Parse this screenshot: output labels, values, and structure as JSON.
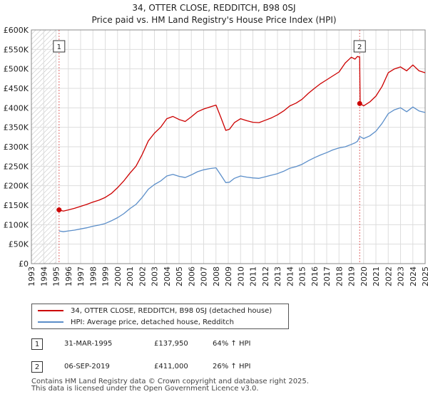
{
  "colors": {
    "property": "#cc0000",
    "hpi": "#5b8ec9",
    "marker": "#cc0000",
    "vline": "#cc0000"
  },
  "chart_data": {
    "type": "line",
    "title": "34, OTTER CLOSE, REDDITCH, B98 0SJ",
    "subtitle": "Price paid vs. HM Land Registry's House Price Index (HPI)",
    "xlim": [
      1993,
      2025
    ],
    "ylim": [
      0,
      600000
    ],
    "x_ticks": [
      1993,
      1994,
      1995,
      1996,
      1997,
      1998,
      1999,
      2000,
      2001,
      2002,
      2003,
      2004,
      2005,
      2006,
      2007,
      2008,
      2009,
      2010,
      2011,
      2012,
      2013,
      2014,
      2015,
      2016,
      2017,
      2018,
      2019,
      2020,
      2021,
      2022,
      2023,
      2024,
      2025
    ],
    "y_ticks": [
      0,
      50000,
      100000,
      150000,
      200000,
      250000,
      300000,
      350000,
      400000,
      450000,
      500000,
      550000,
      600000
    ],
    "y_tick_labels": [
      "£0",
      "£50K",
      "£100K",
      "£150K",
      "£200K",
      "£250K",
      "£300K",
      "£350K",
      "£400K",
      "£450K",
      "£500K",
      "£550K",
      "£600K"
    ],
    "grid": true,
    "hatched_region_before": 1995.0,
    "series": [
      {
        "name": "34, OTTER CLOSE, REDDITCH, B98 0SJ (detached house)",
        "x": [
          1995.25,
          1995.6,
          1996.0,
          1996.5,
          1997.0,
          1997.5,
          1998.0,
          1998.5,
          1999.0,
          1999.5,
          2000.0,
          2000.5,
          2001.0,
          2001.5,
          2002.0,
          2002.5,
          2003.0,
          2003.5,
          2004.0,
          2004.5,
          2005.0,
          2005.5,
          2006.0,
          2006.5,
          2007.0,
          2007.5,
          2008.0,
          2008.4,
          2008.8,
          2009.1,
          2009.5,
          2010.0,
          2010.5,
          2011.0,
          2011.5,
          2012.0,
          2012.5,
          2013.0,
          2013.5,
          2014.0,
          2014.5,
          2015.0,
          2015.5,
          2016.0,
          2016.5,
          2017.0,
          2017.5,
          2018.0,
          2018.5,
          2019.0,
          2019.3,
          2019.5,
          2019.68,
          2019.72,
          2020.0,
          2020.5,
          2021.0,
          2021.5,
          2022.0,
          2022.5,
          2023.0,
          2023.5,
          2024.0,
          2024.5,
          2025.0
        ],
        "values": [
          137950,
          135000,
          138000,
          142000,
          147000,
          152000,
          158000,
          163000,
          170000,
          180000,
          195000,
          212000,
          232000,
          250000,
          280000,
          315000,
          335000,
          350000,
          372000,
          378000,
          370000,
          365000,
          377000,
          390000,
          397000,
          402000,
          407000,
          375000,
          342000,
          345000,
          362000,
          372000,
          367000,
          363000,
          362000,
          368000,
          374000,
          382000,
          392000,
          405000,
          412000,
          422000,
          437000,
          450000,
          462000,
          472000,
          482000,
          492000,
          515000,
          530000,
          525000,
          532000,
          530000,
          411000,
          405000,
          415000,
          430000,
          455000,
          490000,
          500000,
          505000,
          495000,
          510000,
          495000,
          490000
        ]
      },
      {
        "name": "HPI: Average price, detached house, Redditch",
        "x": [
          1995.25,
          1995.6,
          1996.0,
          1996.5,
          1997.0,
          1997.5,
          1998.0,
          1998.5,
          1999.0,
          1999.5,
          2000.0,
          2000.5,
          2001.0,
          2001.5,
          2002.0,
          2002.5,
          2003.0,
          2003.5,
          2004.0,
          2004.5,
          2005.0,
          2005.5,
          2006.0,
          2006.5,
          2007.0,
          2007.5,
          2008.0,
          2008.4,
          2008.8,
          2009.1,
          2009.5,
          2010.0,
          2010.5,
          2011.0,
          2011.5,
          2012.0,
          2012.5,
          2013.0,
          2013.5,
          2014.0,
          2014.5,
          2015.0,
          2015.5,
          2016.0,
          2016.5,
          2017.0,
          2017.5,
          2018.0,
          2018.5,
          2019.0,
          2019.3,
          2019.5,
          2019.68,
          2019.72,
          2020.0,
          2020.5,
          2021.0,
          2021.5,
          2022.0,
          2022.5,
          2023.0,
          2023.5,
          2024.0,
          2024.5,
          2025.0
        ],
        "values": [
          84000,
          82000,
          84000,
          86000,
          89000,
          92000,
          96000,
          99000,
          103000,
          110000,
          118000,
          128000,
          141000,
          152000,
          170000,
          191000,
          203000,
          212000,
          225000,
          229000,
          224000,
          221000,
          228000,
          236000,
          241000,
          244000,
          246000,
          227000,
          208000,
          209000,
          219000,
          225000,
          222000,
          220000,
          219000,
          223000,
          227000,
          231000,
          237000,
          245000,
          249000,
          255000,
          264000,
          272000,
          279000,
          285000,
          292000,
          297000,
          300000,
          306000,
          310000,
          314000,
          326000,
          326000,
          321000,
          328000,
          340000,
          360000,
          385000,
          395000,
          400000,
          390000,
          402000,
          392000,
          388000
        ]
      }
    ],
    "annotations": [
      {
        "label": "1",
        "date": "31-MAR-1995",
        "x": 1995.25,
        "y": 137950,
        "price": "£137,950",
        "hpi_change": "64% ↑ HPI"
      },
      {
        "label": "2",
        "date": "06-SEP-2019",
        "x": 2019.68,
        "y": 411000,
        "price": "£411,000",
        "hpi_change": "26% ↑ HPI"
      }
    ]
  },
  "legend": {
    "property_label": "34, OTTER CLOSE, REDDITCH, B98 0SJ (detached house)",
    "hpi_label": "HPI: Average price, detached house, Redditch"
  },
  "transactions": [
    {
      "label": "1",
      "date": "31-MAR-1995",
      "price": "£137,950",
      "hpi_change": "64% ↑ HPI"
    },
    {
      "label": "2",
      "date": "06-SEP-2019",
      "price": "£411,000",
      "hpi_change": "26% ↑ HPI"
    }
  ],
  "footer": {
    "line1": "Contains HM Land Registry data © Crown copyright and database right 2025.",
    "line2": "This data is licensed under the Open Government Licence v3.0."
  }
}
